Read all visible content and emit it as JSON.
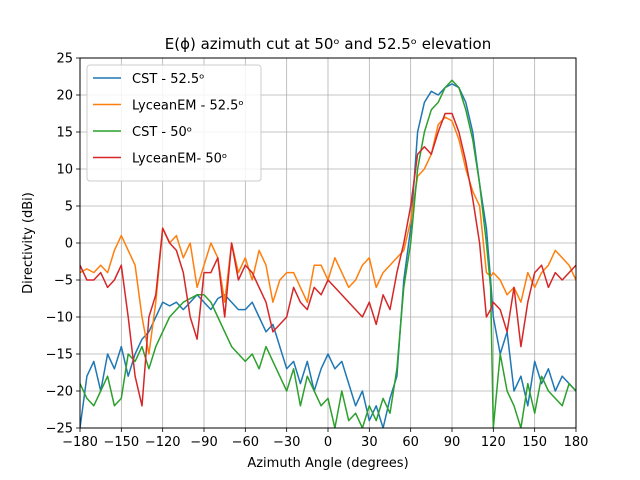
{
  "chart_data": {
    "type": "line",
    "title": "E(ϕ) azimuth cut at 50ᵒ and 52.5ᵒ elevation",
    "xlabel": "Azimuth Angle (degrees)",
    "ylabel": "Directivity (dBi)",
    "xlim": [
      -180,
      180
    ],
    "ylim": [
      -25,
      25
    ],
    "xticks": [
      -180,
      -150,
      -120,
      -90,
      -60,
      -30,
      0,
      30,
      60,
      90,
      120,
      150,
      180
    ],
    "yticks": [
      -25,
      -20,
      -15,
      -10,
      -5,
      0,
      5,
      10,
      15,
      20,
      25
    ],
    "xtick_labels": [
      "−180",
      "−150",
      "−120",
      "−90",
      "−60",
      "−30",
      "0",
      "30",
      "60",
      "90",
      "120",
      "150",
      "180"
    ],
    "ytick_labels": [
      "−25",
      "−20",
      "−15",
      "−10",
      "−5",
      "0",
      "5",
      "10",
      "15",
      "20",
      "25"
    ],
    "grid": true,
    "legend_position": "top-left",
    "series": [
      {
        "name": "CST - 52.5ᵒ",
        "color": "#1f77b4",
        "x": [
          -180,
          -175,
          -170,
          -165,
          -160,
          -155,
          -150,
          -145,
          -140,
          -135,
          -130,
          -125,
          -120,
          -115,
          -110,
          -105,
          -100,
          -95,
          -90,
          -85,
          -80,
          -75,
          -70,
          -65,
          -60,
          -55,
          -50,
          -45,
          -40,
          -35,
          -30,
          -25,
          -20,
          -15,
          -10,
          -5,
          0,
          5,
          10,
          15,
          20,
          25,
          30,
          35,
          40,
          45,
          50,
          55,
          60,
          65,
          70,
          75,
          80,
          85,
          90,
          95,
          100,
          105,
          110,
          115,
          118,
          120,
          125,
          130,
          135,
          140,
          145,
          150,
          155,
          160,
          165,
          170,
          175,
          180
        ],
        "y": [
          -25,
          -18,
          -16,
          -20,
          -15,
          -17,
          -14,
          -18,
          -15,
          -13,
          -12,
          -10,
          -8,
          -8.5,
          -8,
          -9,
          -8,
          -7,
          -8,
          -9,
          -7.5,
          -7,
          -8,
          -9,
          -9,
          -8,
          -10,
          -12,
          -11,
          -14,
          -17,
          -16,
          -19,
          -16,
          -20,
          -17,
          -15,
          -17,
          -16,
          -19,
          -22,
          -20,
          -24,
          -22,
          -25,
          -21,
          -18,
          -5,
          2,
          15,
          19,
          20.5,
          20,
          21,
          21.5,
          21,
          19,
          15,
          8,
          2,
          -5,
          -10,
          -15,
          -12,
          -20,
          -18,
          -22,
          -16,
          -19,
          -17,
          -20,
          -18,
          -19,
          -20
        ]
      },
      {
        "name": "LyceanEM - 52.5ᵒ",
        "color": "#ff7f0e",
        "x": [
          -180,
          -175,
          -170,
          -165,
          -160,
          -155,
          -150,
          -145,
          -140,
          -135,
          -130,
          -125,
          -120,
          -115,
          -110,
          -105,
          -100,
          -95,
          -90,
          -85,
          -80,
          -75,
          -70,
          -65,
          -60,
          -55,
          -50,
          -45,
          -40,
          -35,
          -30,
          -25,
          -20,
          -15,
          -10,
          -5,
          0,
          5,
          10,
          15,
          20,
          25,
          30,
          35,
          40,
          45,
          50,
          55,
          60,
          65,
          70,
          75,
          80,
          85,
          90,
          95,
          100,
          105,
          110,
          115,
          118,
          120,
          125,
          130,
          135,
          140,
          145,
          150,
          155,
          160,
          165,
          170,
          175,
          180
        ],
        "y": [
          -4,
          -3.5,
          -4,
          -3,
          -4,
          -1,
          1,
          -1,
          -3,
          -10,
          -15,
          -8,
          2,
          0,
          1,
          -2,
          0,
          -6,
          -3,
          0,
          -2,
          -8,
          0,
          -4,
          -2,
          -5,
          -1,
          -3,
          -8,
          -5,
          -4,
          -4,
          -6,
          -8,
          -3,
          -3,
          -5,
          -2,
          -4,
          -6,
          -5,
          -3,
          -2,
          -6,
          -4,
          -3,
          -2,
          -1,
          3,
          9,
          10,
          12,
          16,
          17,
          16.5,
          14,
          10,
          7,
          5,
          -4,
          -4.5,
          -4,
          -5,
          -7,
          -6,
          -8,
          -4,
          -6,
          -4,
          -3,
          -1,
          -2,
          -3,
          -5
        ]
      },
      {
        "name": "CST - 50ᵒ",
        "color": "#2ca02c",
        "x": [
          -180,
          -175,
          -170,
          -165,
          -160,
          -155,
          -150,
          -145,
          -140,
          -135,
          -130,
          -125,
          -120,
          -115,
          -110,
          -105,
          -100,
          -95,
          -90,
          -85,
          -80,
          -75,
          -70,
          -65,
          -60,
          -55,
          -50,
          -45,
          -40,
          -35,
          -30,
          -25,
          -20,
          -15,
          -10,
          -5,
          0,
          5,
          10,
          15,
          20,
          25,
          30,
          35,
          40,
          45,
          50,
          55,
          60,
          65,
          70,
          75,
          80,
          85,
          90,
          95,
          100,
          105,
          110,
          115,
          118,
          120,
          125,
          130,
          135,
          140,
          145,
          150,
          155,
          160,
          165,
          170,
          175,
          180
        ],
        "y": [
          -19,
          -21,
          -22,
          -20,
          -18,
          -22,
          -21,
          -15,
          -16,
          -14,
          -17,
          -14,
          -12,
          -10,
          -9,
          -8,
          -7.5,
          -7,
          -7,
          -8,
          -10,
          -12,
          -14,
          -15,
          -16,
          -15,
          -17,
          -14,
          -16,
          -18,
          -20,
          -17,
          -22,
          -18,
          -20,
          -22,
          -21,
          -25,
          -20,
          -24,
          -23,
          -25,
          -22,
          -24,
          -21,
          -23,
          -17,
          -6,
          0,
          10,
          15,
          18,
          19,
          21,
          22,
          21,
          18,
          14,
          8,
          0,
          -6,
          -25,
          -15,
          -20,
          -22,
          -25,
          -19,
          -23,
          -18,
          -20,
          -21,
          -22,
          -19,
          -20
        ]
      },
      {
        "name": "LyceanEM- 50ᵒ",
        "color": "#d62728",
        "x": [
          -180,
          -175,
          -170,
          -165,
          -160,
          -155,
          -150,
          -145,
          -140,
          -135,
          -130,
          -125,
          -120,
          -115,
          -110,
          -105,
          -100,
          -95,
          -90,
          -85,
          -80,
          -75,
          -70,
          -65,
          -60,
          -55,
          -50,
          -45,
          -40,
          -35,
          -30,
          -25,
          -20,
          -15,
          -10,
          -5,
          0,
          5,
          10,
          15,
          20,
          25,
          30,
          35,
          40,
          45,
          50,
          55,
          60,
          65,
          70,
          75,
          80,
          85,
          90,
          95,
          100,
          105,
          110,
          115,
          118,
          120,
          125,
          130,
          135,
          140,
          145,
          150,
          155,
          160,
          165,
          170,
          175,
          180
        ],
        "y": [
          -3,
          -5,
          -5,
          -4,
          -6,
          -5,
          -3,
          -10,
          -18,
          -22,
          -10,
          -7,
          2,
          0,
          -1,
          -4,
          -10,
          -13,
          -4,
          -4,
          -2,
          -10,
          0,
          -5,
          -3,
          -4,
          -6,
          -8,
          -12,
          -11,
          -10,
          -6,
          -8,
          -9,
          -6,
          -7,
          -5,
          -6,
          -7,
          -8,
          -9,
          -10,
          -8,
          -11,
          -7,
          -9,
          -4,
          0,
          5,
          12,
          13,
          12,
          15,
          17.5,
          17.5,
          15,
          11,
          6,
          0,
          -10,
          -9,
          -8,
          -9,
          -12,
          -6,
          -14,
          -8,
          -4,
          -3,
          -6,
          -4,
          -5,
          -4,
          -3
        ]
      }
    ]
  }
}
